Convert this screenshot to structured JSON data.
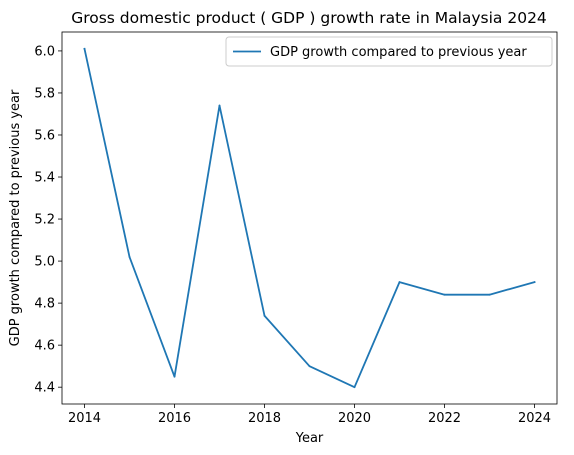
{
  "chart_data": {
    "type": "line",
    "title": "Gross domestic product ( GDP ) growth rate in Malaysia 2024",
    "xlabel": "Year",
    "ylabel": "GDP growth compared to previous year",
    "x": [
      2014,
      2015,
      2016,
      2017,
      2018,
      2019,
      2020,
      2021,
      2022,
      2023,
      2024
    ],
    "series": [
      {
        "name": "GDP growth compared to previous year",
        "color": "#1f77b4",
        "values": [
          6.01,
          5.02,
          4.45,
          5.74,
          4.74,
          4.5,
          4.4,
          4.9,
          4.84,
          4.84,
          4.9
        ]
      }
    ],
    "xticks": [
      "2014",
      "2016",
      "2018",
      "2020",
      "2022",
      "2024"
    ],
    "yticks": [
      "4.4",
      "4.6",
      "4.8",
      "5.0",
      "5.2",
      "5.4",
      "5.6",
      "5.8",
      "6.0"
    ],
    "xlim": [
      2013.5,
      2024.5
    ],
    "ylim": [
      4.32,
      6.09
    ],
    "grid": false,
    "legend_position": "upper-right"
  }
}
